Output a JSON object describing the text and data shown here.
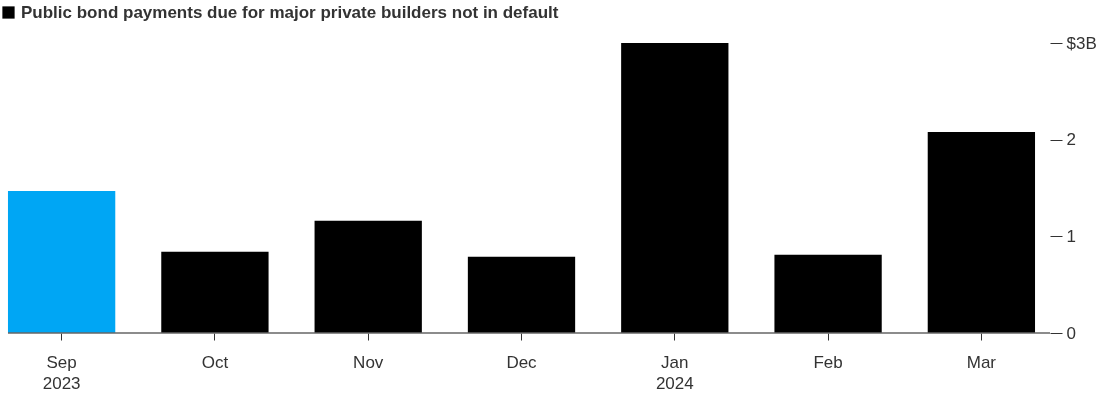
{
  "chart_data": {
    "type": "bar",
    "categories": [
      "Sep\n2023",
      "Oct",
      "Nov",
      "Dec",
      "Jan\n2024",
      "Feb",
      "Mar"
    ],
    "series": [
      {
        "name": "Public bond payments due for major private builders not in default",
        "color": "#000000",
        "colors": [
          "#00a6f4",
          "#000000",
          "#000000",
          "#000000",
          "#000000",
          "#000000",
          "#000000"
        ],
        "values": [
          1.47,
          0.84,
          1.16,
          0.79,
          3.0,
          0.81,
          2.08
        ]
      }
    ],
    "ylim": [
      0,
      3
    ],
    "yticks": [
      0,
      1,
      2,
      {
        "value": 3,
        "label": "$3B"
      }
    ],
    "legend": "top left"
  }
}
